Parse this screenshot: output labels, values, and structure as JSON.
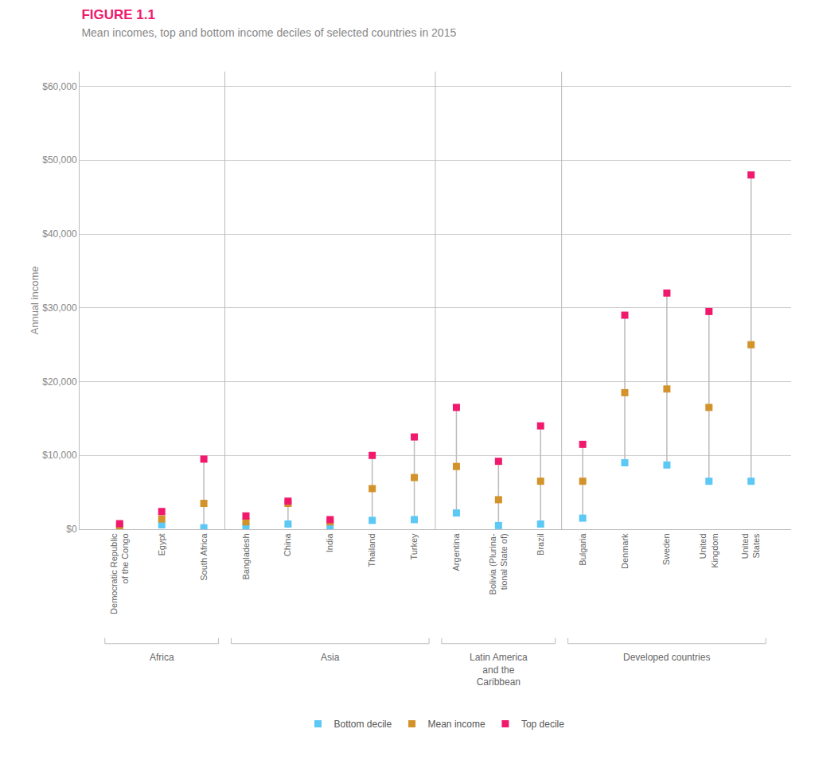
{
  "chart_data": {
    "type": "dot",
    "title": "FIGURE 1.1",
    "subtitle": "Mean incomes, top and bottom income deciles of selected countries in 2015",
    "y_label": "Annual income",
    "categories": [
      "Democratic Republic\nof the Congo",
      "Egypt",
      "South Africa",
      "Bangladesh",
      "China",
      "India",
      "Thailand",
      "Turkey",
      "Argentina",
      "Bolivia (Plurina-\ntional State of)",
      "Brazil",
      "Bulgaria",
      "Denmark",
      "Sweden",
      "United\nKingdom",
      "United\nStates"
    ],
    "series": [
      {
        "name": "Bottom decile",
        "color": "#5BC8F5",
        "marker": "square",
        "values": [
          150,
          600,
          200,
          350,
          700,
          350,
          1200,
          1300,
          2200,
          500,
          700,
          1500,
          9000,
          8700,
          6500,
          6500
        ]
      },
      {
        "name": "Mean income",
        "color": "#D4922A",
        "marker": "square",
        "values": [
          350,
          1400,
          3500,
          1000,
          3500,
          1000,
          5500,
          7000,
          8500,
          4000,
          6500,
          6500,
          18500,
          19000,
          16500,
          25000
        ]
      },
      {
        "name": "Top decile",
        "color": "#F0196E",
        "marker": "square",
        "values": [
          750,
          2400,
          9500,
          1800,
          3800,
          1300,
          10000,
          12500,
          16500,
          9200,
          14000,
          11500,
          29000,
          32000,
          29500,
          48000
        ]
      }
    ],
    "regions": [
      {
        "name": "Africa",
        "start": 0,
        "end": 2
      },
      {
        "name": "Asia",
        "start": 3,
        "end": 7
      },
      {
        "name": "Latin America\nand the\nCaribbean",
        "start": 8,
        "end": 10
      },
      {
        "name": "Developed countries",
        "start": 11,
        "end": 15
      }
    ],
    "ylim": [
      0,
      62000
    ],
    "yticks": [
      {
        "value": 0,
        "label": "$0"
      },
      {
        "value": 10000,
        "label": "$10,000"
      },
      {
        "value": 20000,
        "label": "$20,000"
      },
      {
        "value": 30000,
        "label": "$30,000"
      },
      {
        "value": 40000,
        "label": "$40,000"
      },
      {
        "value": 50000,
        "label": "$50,000"
      },
      {
        "value": 60000,
        "label": "$60,000"
      }
    ],
    "grid": true,
    "legend": "bottom"
  }
}
